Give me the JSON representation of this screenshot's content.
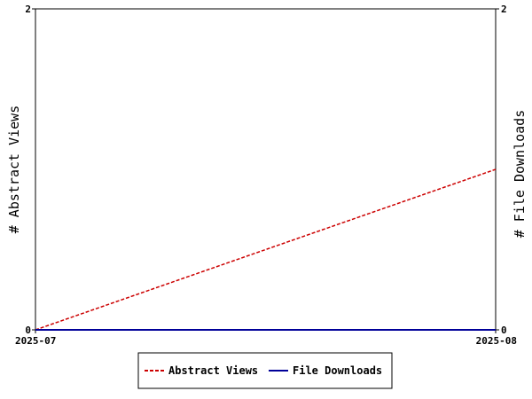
{
  "chart_data": {
    "type": "line",
    "x": [
      "2025-07",
      "2025-08"
    ],
    "series": [
      {
        "name": "Abstract Views",
        "values": [
          0,
          1
        ],
        "color": "#cc0000",
        "style": "dashed",
        "axis": "left"
      },
      {
        "name": "File Downloads",
        "values": [
          0,
          0
        ],
        "color": "#000099",
        "style": "solid",
        "axis": "right"
      }
    ],
    "ylabel_left": "# Abstract Views",
    "ylabel_right": "# File Downloads",
    "ylim_left": [
      0,
      2
    ],
    "ylim_right": [
      0,
      2
    ],
    "yticks_left": [
      "0",
      "2"
    ],
    "yticks_right": [
      "0",
      "2"
    ],
    "grid": false,
    "legend_position": "bottom"
  }
}
